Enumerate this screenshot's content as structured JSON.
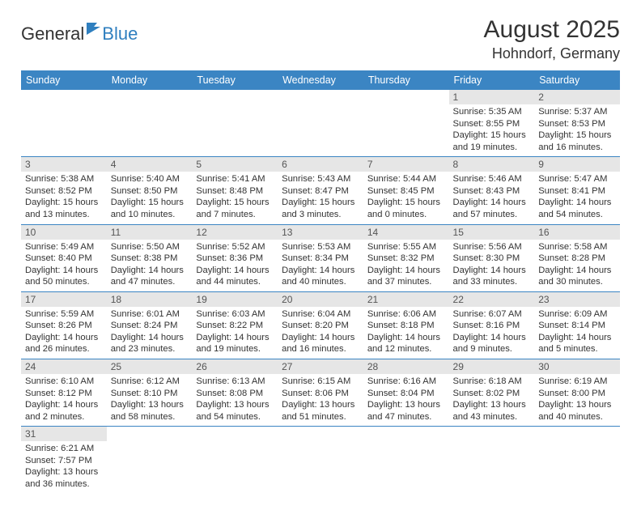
{
  "brand": {
    "part1": "General",
    "part2": "Blue"
  },
  "title": "August 2025",
  "location": "Hohndorf, Germany",
  "colors": {
    "header_bg": "#3b85c3",
    "header_text": "#ffffff",
    "daynum_bg": "#e6e6e6",
    "row_divider": "#3b85c3",
    "logo_blue": "#2f7fbf",
    "text": "#333333"
  },
  "weekdays": [
    "Sunday",
    "Monday",
    "Tuesday",
    "Wednesday",
    "Thursday",
    "Friday",
    "Saturday"
  ],
  "weeks": [
    [
      null,
      null,
      null,
      null,
      null,
      {
        "n": "1",
        "sr": "Sunrise: 5:35 AM",
        "ss": "Sunset: 8:55 PM",
        "dl": "Daylight: 15 hours and 19 minutes."
      },
      {
        "n": "2",
        "sr": "Sunrise: 5:37 AM",
        "ss": "Sunset: 8:53 PM",
        "dl": "Daylight: 15 hours and 16 minutes."
      }
    ],
    [
      {
        "n": "3",
        "sr": "Sunrise: 5:38 AM",
        "ss": "Sunset: 8:52 PM",
        "dl": "Daylight: 15 hours and 13 minutes."
      },
      {
        "n": "4",
        "sr": "Sunrise: 5:40 AM",
        "ss": "Sunset: 8:50 PM",
        "dl": "Daylight: 15 hours and 10 minutes."
      },
      {
        "n": "5",
        "sr": "Sunrise: 5:41 AM",
        "ss": "Sunset: 8:48 PM",
        "dl": "Daylight: 15 hours and 7 minutes."
      },
      {
        "n": "6",
        "sr": "Sunrise: 5:43 AM",
        "ss": "Sunset: 8:47 PM",
        "dl": "Daylight: 15 hours and 3 minutes."
      },
      {
        "n": "7",
        "sr": "Sunrise: 5:44 AM",
        "ss": "Sunset: 8:45 PM",
        "dl": "Daylight: 15 hours and 0 minutes."
      },
      {
        "n": "8",
        "sr": "Sunrise: 5:46 AM",
        "ss": "Sunset: 8:43 PM",
        "dl": "Daylight: 14 hours and 57 minutes."
      },
      {
        "n": "9",
        "sr": "Sunrise: 5:47 AM",
        "ss": "Sunset: 8:41 PM",
        "dl": "Daylight: 14 hours and 54 minutes."
      }
    ],
    [
      {
        "n": "10",
        "sr": "Sunrise: 5:49 AM",
        "ss": "Sunset: 8:40 PM",
        "dl": "Daylight: 14 hours and 50 minutes."
      },
      {
        "n": "11",
        "sr": "Sunrise: 5:50 AM",
        "ss": "Sunset: 8:38 PM",
        "dl": "Daylight: 14 hours and 47 minutes."
      },
      {
        "n": "12",
        "sr": "Sunrise: 5:52 AM",
        "ss": "Sunset: 8:36 PM",
        "dl": "Daylight: 14 hours and 44 minutes."
      },
      {
        "n": "13",
        "sr": "Sunrise: 5:53 AM",
        "ss": "Sunset: 8:34 PM",
        "dl": "Daylight: 14 hours and 40 minutes."
      },
      {
        "n": "14",
        "sr": "Sunrise: 5:55 AM",
        "ss": "Sunset: 8:32 PM",
        "dl": "Daylight: 14 hours and 37 minutes."
      },
      {
        "n": "15",
        "sr": "Sunrise: 5:56 AM",
        "ss": "Sunset: 8:30 PM",
        "dl": "Daylight: 14 hours and 33 minutes."
      },
      {
        "n": "16",
        "sr": "Sunrise: 5:58 AM",
        "ss": "Sunset: 8:28 PM",
        "dl": "Daylight: 14 hours and 30 minutes."
      }
    ],
    [
      {
        "n": "17",
        "sr": "Sunrise: 5:59 AM",
        "ss": "Sunset: 8:26 PM",
        "dl": "Daylight: 14 hours and 26 minutes."
      },
      {
        "n": "18",
        "sr": "Sunrise: 6:01 AM",
        "ss": "Sunset: 8:24 PM",
        "dl": "Daylight: 14 hours and 23 minutes."
      },
      {
        "n": "19",
        "sr": "Sunrise: 6:03 AM",
        "ss": "Sunset: 8:22 PM",
        "dl": "Daylight: 14 hours and 19 minutes."
      },
      {
        "n": "20",
        "sr": "Sunrise: 6:04 AM",
        "ss": "Sunset: 8:20 PM",
        "dl": "Daylight: 14 hours and 16 minutes."
      },
      {
        "n": "21",
        "sr": "Sunrise: 6:06 AM",
        "ss": "Sunset: 8:18 PM",
        "dl": "Daylight: 14 hours and 12 minutes."
      },
      {
        "n": "22",
        "sr": "Sunrise: 6:07 AM",
        "ss": "Sunset: 8:16 PM",
        "dl": "Daylight: 14 hours and 9 minutes."
      },
      {
        "n": "23",
        "sr": "Sunrise: 6:09 AM",
        "ss": "Sunset: 8:14 PM",
        "dl": "Daylight: 14 hours and 5 minutes."
      }
    ],
    [
      {
        "n": "24",
        "sr": "Sunrise: 6:10 AM",
        "ss": "Sunset: 8:12 PM",
        "dl": "Daylight: 14 hours and 2 minutes."
      },
      {
        "n": "25",
        "sr": "Sunrise: 6:12 AM",
        "ss": "Sunset: 8:10 PM",
        "dl": "Daylight: 13 hours and 58 minutes."
      },
      {
        "n": "26",
        "sr": "Sunrise: 6:13 AM",
        "ss": "Sunset: 8:08 PM",
        "dl": "Daylight: 13 hours and 54 minutes."
      },
      {
        "n": "27",
        "sr": "Sunrise: 6:15 AM",
        "ss": "Sunset: 8:06 PM",
        "dl": "Daylight: 13 hours and 51 minutes."
      },
      {
        "n": "28",
        "sr": "Sunrise: 6:16 AM",
        "ss": "Sunset: 8:04 PM",
        "dl": "Daylight: 13 hours and 47 minutes."
      },
      {
        "n": "29",
        "sr": "Sunrise: 6:18 AM",
        "ss": "Sunset: 8:02 PM",
        "dl": "Daylight: 13 hours and 43 minutes."
      },
      {
        "n": "30",
        "sr": "Sunrise: 6:19 AM",
        "ss": "Sunset: 8:00 PM",
        "dl": "Daylight: 13 hours and 40 minutes."
      }
    ],
    [
      {
        "n": "31",
        "sr": "Sunrise: 6:21 AM",
        "ss": "Sunset: 7:57 PM",
        "dl": "Daylight: 13 hours and 36 minutes."
      },
      null,
      null,
      null,
      null,
      null,
      null
    ]
  ]
}
